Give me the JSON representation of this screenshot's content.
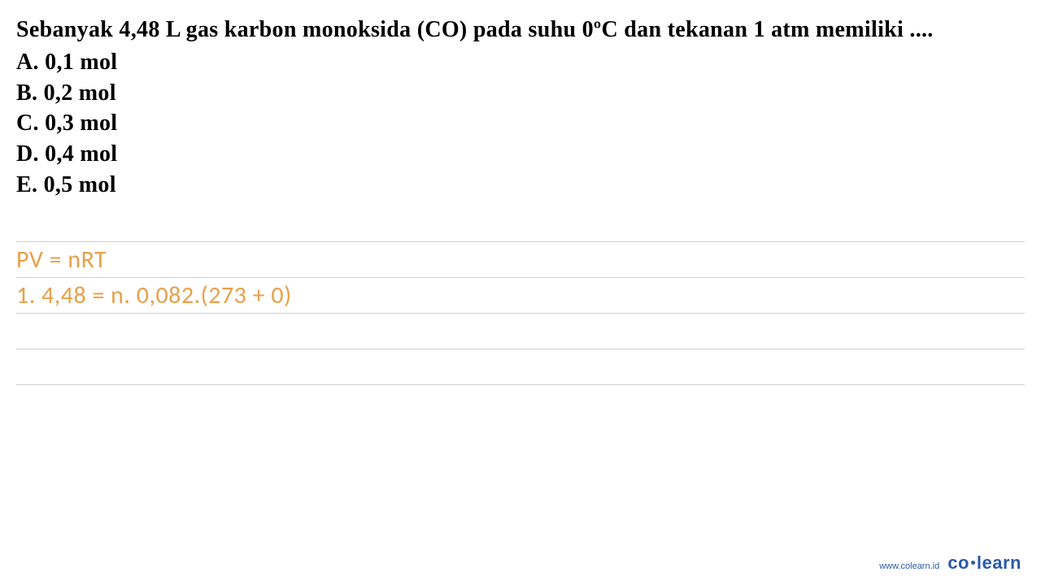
{
  "question": {
    "text": "Sebanyak 4,48 L gas karbon monoksida (CO) pada suhu 0ºC dan tekanan 1 atm memiliki ....",
    "text_color": "#000000",
    "fontsize": 28,
    "fontweight": "bold"
  },
  "options": [
    {
      "label": "A.",
      "value": "0,1 mol"
    },
    {
      "label": "B.",
      "value": "0,2 mol"
    },
    {
      "label": "C.",
      "value": "0,3 mol"
    },
    {
      "label": "D.",
      "value": "0,4 mol"
    },
    {
      "label": "E.",
      "value": "0,5 mol"
    }
  ],
  "worksheet": {
    "line_color": "#d0d0d0",
    "line_height": 44,
    "text_color": "#e8a04a",
    "text_fontsize": 30,
    "lines": [
      "PV = nRT",
      "1. 4,48 = n. 0,082.(273 + 0)",
      "",
      "",
      ""
    ]
  },
  "footer": {
    "url": "www.colearn.id",
    "logo_prefix": "co",
    "logo_suffix": "learn",
    "color": "#2a5aa7"
  },
  "background_color": "#ffffff"
}
